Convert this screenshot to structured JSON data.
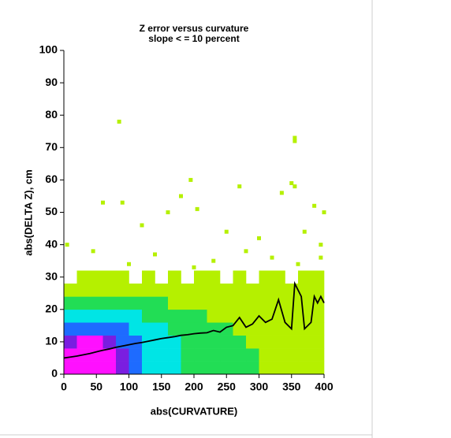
{
  "chart_data": {
    "type": "heatmap",
    "title": "Z error versus curvature",
    "subtitle": "slope < = 10 percent",
    "xlabel": "abs(CURVATURE)",
    "ylabel": "abs(DELTA Z), cm",
    "xlim": [
      0,
      400
    ],
    "ylim": [
      0,
      100
    ],
    "xticks": [
      0,
      50,
      100,
      150,
      200,
      250,
      300,
      350,
      400
    ],
    "yticks": [
      0,
      10,
      20,
      30,
      40,
      50,
      60,
      70,
      80,
      90,
      100
    ],
    "colors": [
      "#b5f000",
      "#22dd55",
      "#00e5e5",
      "#1e6bff",
      "#7a1ee0",
      "#ff10ff"
    ],
    "x_bins": [
      0,
      20,
      40,
      60,
      80,
      100,
      120,
      140,
      160,
      180,
      200,
      220,
      240,
      260,
      280,
      300,
      320,
      340,
      360,
      380,
      400
    ],
    "y_bins": [
      0,
      4,
      8,
      12,
      16,
      20,
      24,
      28,
      32
    ],
    "z": [
      [
        6,
        6,
        6,
        6,
        5,
        4,
        3,
        3,
        3,
        2,
        2,
        2,
        2,
        2,
        2,
        1,
        1,
        1,
        1,
        1
      ],
      [
        6,
        6,
        6,
        6,
        5,
        4,
        3,
        3,
        3,
        2,
        2,
        2,
        2,
        2,
        2,
        1,
        1,
        1,
        1,
        1
      ],
      [
        5,
        6,
        6,
        5,
        4,
        4,
        3,
        3,
        3,
        2,
        2,
        2,
        2,
        2,
        1,
        1,
        1,
        1,
        1,
        1
      ],
      [
        4,
        4,
        4,
        4,
        4,
        3,
        3,
        3,
        2,
        2,
        2,
        2,
        2,
        1,
        1,
        1,
        1,
        1,
        1,
        1
      ],
      [
        3,
        3,
        3,
        3,
        3,
        3,
        2,
        2,
        2,
        2,
        2,
        1,
        1,
        1,
        1,
        1,
        1,
        1,
        1,
        1
      ],
      [
        2,
        2,
        2,
        2,
        2,
        2,
        2,
        2,
        1,
        1,
        1,
        1,
        1,
        1,
        1,
        1,
        1,
        1,
        1,
        1
      ],
      [
        1,
        1,
        1,
        1,
        1,
        1,
        1,
        1,
        1,
        1,
        1,
        1,
        1,
        1,
        1,
        1,
        1,
        1,
        1,
        1
      ],
      [
        0,
        1,
        1,
        1,
        1,
        0,
        1,
        0,
        1,
        0,
        1,
        1,
        0,
        1,
        0,
        1,
        1,
        0,
        1,
        1
      ]
    ],
    "outliers": {
      "x": [
        85,
        355,
        355,
        195,
        270,
        350,
        355,
        60,
        90,
        160,
        205,
        335,
        385,
        400,
        180,
        5,
        45,
        120,
        250,
        300,
        370,
        395,
        230,
        140,
        280,
        320,
        360,
        100,
        200,
        395
      ],
      "y": [
        78,
        73,
        72,
        60,
        58,
        59,
        58,
        53,
        53,
        50,
        51,
        56,
        52,
        50,
        55,
        40,
        38,
        46,
        44,
        42,
        44,
        40,
        35,
        37,
        38,
        36,
        34,
        34,
        33,
        36
      ]
    },
    "line": {
      "color": "#000000",
      "x": [
        0,
        10,
        20,
        30,
        40,
        50,
        60,
        70,
        80,
        90,
        100,
        110,
        120,
        130,
        140,
        150,
        160,
        170,
        180,
        190,
        200,
        210,
        220,
        230,
        240,
        250,
        260,
        270,
        280,
        290,
        300,
        310,
        320,
        330,
        340,
        350,
        355,
        365,
        370,
        380,
        385,
        390,
        395,
        400
      ],
      "values": [
        5,
        5.3,
        5.6,
        6,
        6.4,
        6.9,
        7.4,
        7.8,
        8.3,
        8.7,
        9.1,
        9.5,
        9.8,
        10.2,
        10.6,
        11,
        11.3,
        11.6,
        12,
        12.2,
        12.5,
        12.7,
        12.8,
        13.5,
        13,
        14.5,
        15,
        17.5,
        14.5,
        15.5,
        18,
        16,
        17,
        23,
        16,
        14,
        28,
        24,
        14,
        16,
        24,
        22,
        24,
        22
      ]
    }
  }
}
